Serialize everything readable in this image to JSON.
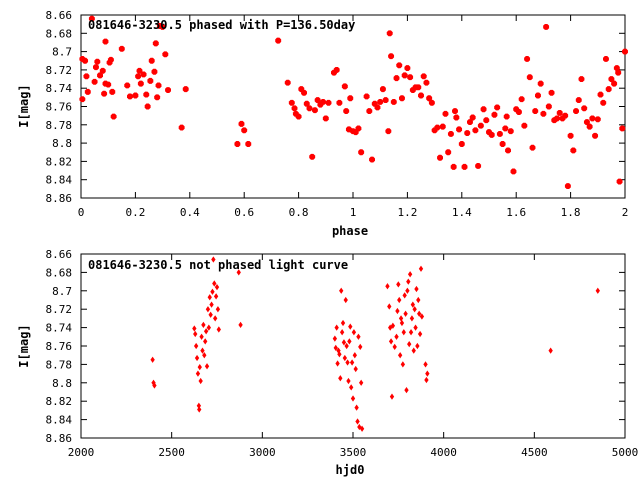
{
  "chart_data": [
    {
      "type": "scatter",
      "title": "081646-3230.5 phased with P=136.50day",
      "xlabel": "phase",
      "ylabel": "I[mag]",
      "xlim": [
        0,
        2
      ],
      "ylim": [
        8.66,
        8.86
      ],
      "y_inverted": true,
      "grid": false,
      "legend": "none",
      "marker_color": "#ff0000",
      "marker": "filled-octagon",
      "xticks": [
        "0",
        "0.2",
        "0.4",
        "0.6",
        "0.8",
        "1",
        "1.2",
        "1.4",
        "1.6",
        "1.8",
        "2"
      ],
      "yticks": [
        "8.66",
        "8.68",
        "8.7",
        "8.72",
        "8.74",
        "8.76",
        "8.78",
        "8.8",
        "8.82",
        "8.84",
        "8.86"
      ],
      "points": [
        [
          0.005,
          8.708
        ],
        [
          0.015,
          8.71
        ],
        [
          0.005,
          8.752
        ],
        [
          0.02,
          8.727
        ],
        [
          0.025,
          8.744
        ],
        [
          0.04,
          8.664
        ],
        [
          0.05,
          8.733
        ],
        [
          0.055,
          8.717
        ],
        [
          0.06,
          8.711
        ],
        [
          0.07,
          8.726
        ],
        [
          0.08,
          8.721
        ],
        [
          0.085,
          8.746
        ],
        [
          0.09,
          8.735
        ],
        [
          0.09,
          8.689
        ],
        [
          0.1,
          8.736
        ],
        [
          0.105,
          8.712
        ],
        [
          0.11,
          8.709
        ],
        [
          0.115,
          8.744
        ],
        [
          0.12,
          8.771
        ],
        [
          0.15,
          8.697
        ],
        [
          0.17,
          8.737
        ],
        [
          0.18,
          8.749
        ],
        [
          0.2,
          8.748
        ],
        [
          0.21,
          8.727
        ],
        [
          0.215,
          8.721
        ],
        [
          0.22,
          8.735
        ],
        [
          0.23,
          8.725
        ],
        [
          0.24,
          8.747
        ],
        [
          0.245,
          8.76
        ],
        [
          0.255,
          8.732
        ],
        [
          0.26,
          8.71
        ],
        [
          0.27,
          8.722
        ],
        [
          0.275,
          8.691
        ],
        [
          0.28,
          8.75
        ],
        [
          0.285,
          8.737
        ],
        [
          0.29,
          8.672
        ],
        [
          0.3,
          8.673
        ],
        [
          0.31,
          8.703
        ],
        [
          0.32,
          8.742
        ],
        [
          0.37,
          8.783
        ],
        [
          0.385,
          8.741
        ],
        [
          0.575,
          8.801
        ],
        [
          0.59,
          8.779
        ],
        [
          0.6,
          8.786
        ],
        [
          0.615,
          8.801
        ],
        [
          0.725,
          8.688
        ],
        [
          0.76,
          8.734
        ],
        [
          0.775,
          8.756
        ],
        [
          0.785,
          8.762
        ],
        [
          0.79,
          8.768
        ],
        [
          0.8,
          8.771
        ],
        [
          0.81,
          8.741
        ],
        [
          0.82,
          8.745
        ],
        [
          0.83,
          8.757
        ],
        [
          0.84,
          8.762
        ],
        [
          0.85,
          8.815
        ],
        [
          0.86,
          8.764
        ],
        [
          0.87,
          8.753
        ],
        [
          0.88,
          8.758
        ],
        [
          0.89,
          8.755
        ],
        [
          0.9,
          8.773
        ],
        [
          0.91,
          8.756
        ],
        [
          0.93,
          8.723
        ],
        [
          0.94,
          8.72
        ],
        [
          0.95,
          8.756
        ],
        [
          0.97,
          8.738
        ],
        [
          0.975,
          8.765
        ],
        [
          0.985,
          8.785
        ],
        [
          0.99,
          8.751
        ],
        [
          1.0,
          8.787
        ],
        [
          1.01,
          8.788
        ],
        [
          1.02,
          8.784
        ],
        [
          1.03,
          8.81
        ],
        [
          1.05,
          8.749
        ],
        [
          1.06,
          8.765
        ],
        [
          1.07,
          8.818
        ],
        [
          1.08,
          8.757
        ],
        [
          1.09,
          8.761
        ],
        [
          1.1,
          8.755
        ],
        [
          1.11,
          8.741
        ],
        [
          1.12,
          8.753
        ],
        [
          1.13,
          8.787
        ],
        [
          1.135,
          8.68
        ],
        [
          1.14,
          8.705
        ],
        [
          1.15,
          8.755
        ],
        [
          1.16,
          8.729
        ],
        [
          1.17,
          8.715
        ],
        [
          1.18,
          8.751
        ],
        [
          1.19,
          8.726
        ],
        [
          1.2,
          8.718
        ],
        [
          1.21,
          8.728
        ],
        [
          1.22,
          8.742
        ],
        [
          1.23,
          8.739
        ],
        [
          1.24,
          8.739
        ],
        [
          1.25,
          8.748
        ],
        [
          1.26,
          8.727
        ],
        [
          1.27,
          8.734
        ],
        [
          1.28,
          8.751
        ],
        [
          1.29,
          8.756
        ],
        [
          1.3,
          8.786
        ],
        [
          1.31,
          8.783
        ],
        [
          1.32,
          8.816
        ],
        [
          1.33,
          8.782
        ],
        [
          1.34,
          8.768
        ],
        [
          1.35,
          8.81
        ],
        [
          1.36,
          8.79
        ],
        [
          1.37,
          8.826
        ],
        [
          1.375,
          8.765
        ],
        [
          1.38,
          8.772
        ],
        [
          1.39,
          8.785
        ],
        [
          1.4,
          8.801
        ],
        [
          1.41,
          8.826
        ],
        [
          1.42,
          8.789
        ],
        [
          1.43,
          8.777
        ],
        [
          1.44,
          8.772
        ],
        [
          1.45,
          8.786
        ],
        [
          1.46,
          8.825
        ],
        [
          1.47,
          8.781
        ],
        [
          1.48,
          8.763
        ],
        [
          1.49,
          8.775
        ],
        [
          1.5,
          8.788
        ],
        [
          1.51,
          8.791
        ],
        [
          1.52,
          8.769
        ],
        [
          1.53,
          8.761
        ],
        [
          1.54,
          8.79
        ],
        [
          1.55,
          8.801
        ],
        [
          1.56,
          8.784
        ],
        [
          1.565,
          8.771
        ],
        [
          1.57,
          8.808
        ],
        [
          1.58,
          8.787
        ],
        [
          1.59,
          8.831
        ],
        [
          1.6,
          8.763
        ],
        [
          1.61,
          8.766
        ],
        [
          1.62,
          8.752
        ],
        [
          1.63,
          8.781
        ],
        [
          1.64,
          8.708
        ],
        [
          1.65,
          8.728
        ],
        [
          1.66,
          8.805
        ],
        [
          1.67,
          8.765
        ],
        [
          1.68,
          8.748
        ],
        [
          1.69,
          8.735
        ],
        [
          1.7,
          8.768
        ],
        [
          1.71,
          8.673
        ],
        [
          1.72,
          8.76
        ],
        [
          1.73,
          8.745
        ],
        [
          1.74,
          8.775
        ],
        [
          1.75,
          8.773
        ],
        [
          1.76,
          8.767
        ],
        [
          1.77,
          8.773
        ],
        [
          1.78,
          8.77
        ],
        [
          1.79,
          8.847
        ],
        [
          1.8,
          8.792
        ],
        [
          1.81,
          8.808
        ],
        [
          1.82,
          8.765
        ],
        [
          1.83,
          8.753
        ],
        [
          1.84,
          8.73
        ],
        [
          1.85,
          8.762
        ],
        [
          1.86,
          8.777
        ],
        [
          1.87,
          8.782
        ],
        [
          1.88,
          8.773
        ],
        [
          1.89,
          8.792
        ],
        [
          1.9,
          8.774
        ],
        [
          1.91,
          8.747
        ],
        [
          1.92,
          8.756
        ],
        [
          1.93,
          8.708
        ],
        [
          1.94,
          8.741
        ],
        [
          1.95,
          8.73
        ],
        [
          1.96,
          8.735
        ],
        [
          1.97,
          8.718
        ],
        [
          1.975,
          8.723
        ],
        [
          1.98,
          8.842
        ],
        [
          1.99,
          8.784
        ],
        [
          2.0,
          8.7
        ]
      ]
    },
    {
      "type": "scatter",
      "title": "081646-3230.5 not phased light curve",
      "xlabel": "hjd0",
      "ylabel": "I[mag]",
      "xlim": [
        2000,
        5000
      ],
      "ylim": [
        8.66,
        8.86
      ],
      "y_inverted": true,
      "grid": false,
      "legend": "none",
      "marker_color": "#ff0000",
      "marker": "small-diamond",
      "xticks": [
        "2000",
        "2500",
        "3000",
        "3500",
        "4000",
        "4500",
        "5000"
      ],
      "yticks": [
        "8.66",
        "8.68",
        "8.7",
        "8.72",
        "8.74",
        "8.76",
        "8.78",
        "8.8",
        "8.82",
        "8.84",
        "8.86"
      ],
      "points": [
        [
          2395,
          8.775
        ],
        [
          2400,
          8.8
        ],
        [
          2405,
          8.803
        ],
        [
          2625,
          8.741
        ],
        [
          2630,
          8.747
        ],
        [
          2635,
          8.76
        ],
        [
          2640,
          8.773
        ],
        [
          2645,
          8.79
        ],
        [
          2650,
          8.825
        ],
        [
          2652,
          8.829
        ],
        [
          2655,
          8.783
        ],
        [
          2660,
          8.798
        ],
        [
          2665,
          8.75
        ],
        [
          2670,
          8.765
        ],
        [
          2675,
          8.737
        ],
        [
          2680,
          8.77
        ],
        [
          2685,
          8.755
        ],
        [
          2690,
          8.744
        ],
        [
          2695,
          8.782
        ],
        [
          2700,
          8.72
        ],
        [
          2705,
          8.74
        ],
        [
          2710,
          8.707
        ],
        [
          2715,
          8.726
        ],
        [
          2720,
          8.715
        ],
        [
          2725,
          8.701
        ],
        [
          2730,
          8.666
        ],
        [
          2735,
          8.692
        ],
        [
          2740,
          8.73
        ],
        [
          2745,
          8.706
        ],
        [
          2750,
          8.696
        ],
        [
          2755,
          8.72
        ],
        [
          2760,
          8.742
        ],
        [
          2870,
          8.68
        ],
        [
          2880,
          8.737
        ],
        [
          3400,
          8.752
        ],
        [
          3405,
          8.762
        ],
        [
          3410,
          8.74
        ],
        [
          3415,
          8.779
        ],
        [
          3420,
          8.765
        ],
        [
          3425,
          8.769
        ],
        [
          3430,
          8.795
        ],
        [
          3435,
          8.7
        ],
        [
          3440,
          8.745
        ],
        [
          3445,
          8.735
        ],
        [
          3450,
          8.756
        ],
        [
          3455,
          8.773
        ],
        [
          3460,
          8.71
        ],
        [
          3465,
          8.76
        ],
        [
          3470,
          8.778
        ],
        [
          3475,
          8.798
        ],
        [
          3480,
          8.755
        ],
        [
          3485,
          8.739
        ],
        [
          3490,
          8.805
        ],
        [
          3495,
          8.778
        ],
        [
          3500,
          8.817
        ],
        [
          3505,
          8.745
        ],
        [
          3510,
          8.77
        ],
        [
          3515,
          8.785
        ],
        [
          3520,
          8.827
        ],
        [
          3525,
          8.842
        ],
        [
          3530,
          8.75
        ],
        [
          3535,
          8.848
        ],
        [
          3540,
          8.761
        ],
        [
          3545,
          8.8
        ],
        [
          3550,
          8.85
        ],
        [
          3690,
          8.695
        ],
        [
          3700,
          8.717
        ],
        [
          3705,
          8.74
        ],
        [
          3710,
          8.755
        ],
        [
          3715,
          8.815
        ],
        [
          3720,
          8.738
        ],
        [
          3730,
          8.761
        ],
        [
          3740,
          8.75
        ],
        [
          3745,
          8.722
        ],
        [
          3750,
          8.693
        ],
        [
          3755,
          8.71
        ],
        [
          3760,
          8.77
        ],
        [
          3765,
          8.73
        ],
        [
          3770,
          8.735
        ],
        [
          3775,
          8.78
        ],
        [
          3780,
          8.745
        ],
        [
          3785,
          8.705
        ],
        [
          3790,
          8.725
        ],
        [
          3795,
          8.808
        ],
        [
          3800,
          8.7
        ],
        [
          3805,
          8.69
        ],
        [
          3810,
          8.758
        ],
        [
          3815,
          8.682
        ],
        [
          3820,
          8.745
        ],
        [
          3825,
          8.73
        ],
        [
          3830,
          8.715
        ],
        [
          3835,
          8.765
        ],
        [
          3840,
          8.72
        ],
        [
          3845,
          8.74
        ],
        [
          3850,
          8.698
        ],
        [
          3855,
          8.76
        ],
        [
          3860,
          8.71
        ],
        [
          3865,
          8.725
        ],
        [
          3870,
          8.747
        ],
        [
          3875,
          8.676
        ],
        [
          3880,
          8.728
        ],
        [
          3900,
          8.78
        ],
        [
          3905,
          8.797
        ],
        [
          3910,
          8.79
        ],
        [
          4590,
          8.765
        ],
        [
          4850,
          8.7
        ]
      ]
    }
  ]
}
